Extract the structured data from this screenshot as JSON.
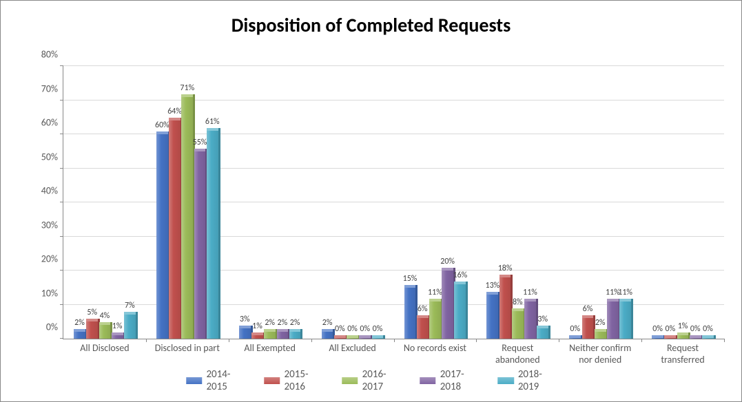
{
  "chart": {
    "type": "bar",
    "title": "Disposition of Completed Requests",
    "title_fontsize": 28,
    "title_color": "#000000",
    "background_color": "#ffffff",
    "grid_color": "#d9d9d9",
    "axis_color": "#888888",
    "label_color": "#595959",
    "label_fontsize": 14,
    "data_label_fontsize": 12,
    "legend_fontsize": 15,
    "ylim": [
      0,
      80
    ],
    "ytick_step": 10,
    "y_format": "percent",
    "categories": [
      "All Disclosed",
      "Disclosed in part",
      "All Exempted",
      "All Excluded",
      "No records exist",
      "Request abandoned",
      "Neither confirm nor denied",
      "Request transferred"
    ],
    "series": [
      {
        "name": "2014-2015",
        "color": "#4472c4",
        "data": [
          2,
          60,
          3,
          2,
          15,
          13,
          0,
          0
        ]
      },
      {
        "name": "2015-2016",
        "color": "#c0504d",
        "data": [
          5,
          64,
          1,
          0,
          6,
          18,
          6,
          0
        ]
      },
      {
        "name": "2016-2017",
        "color": "#9bbb59",
        "data": [
          4,
          71,
          2,
          0,
          11,
          8,
          2,
          1
        ]
      },
      {
        "name": "2017-2018",
        "color": "#8064a2",
        "data": [
          1,
          55,
          2,
          0,
          20,
          11,
          11,
          0
        ]
      },
      {
        "name": "2018-2019",
        "color": "#4bacc6",
        "data": [
          7,
          61,
          2,
          0,
          16,
          3,
          11,
          0
        ]
      }
    ]
  }
}
